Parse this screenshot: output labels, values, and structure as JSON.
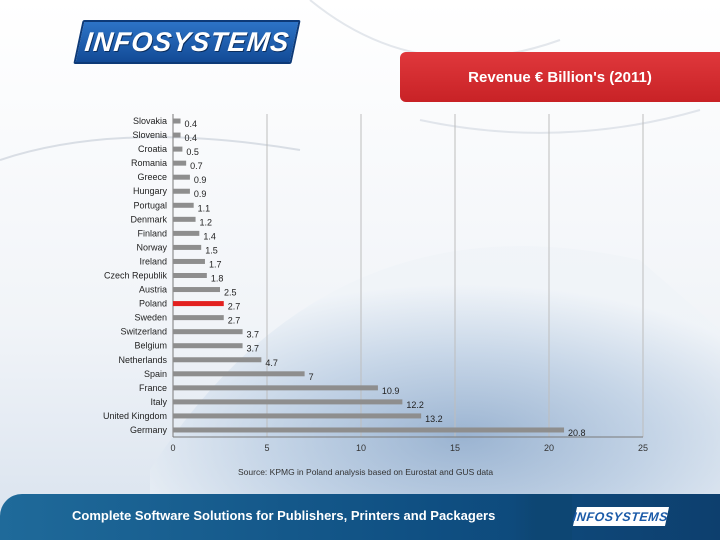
{
  "logo_text": "INFOSYSTEMS",
  "chart_data": {
    "type": "bar",
    "orientation": "horizontal",
    "title": "Revenue € Billion's (2011)",
    "categories": [
      "Slovakia",
      "Slovenia",
      "Croatia",
      "Romania",
      "Greece",
      "Hungary",
      "Portugal",
      "Denmark",
      "Finland",
      "Norway",
      "Ireland",
      "Czech Republik",
      "Austria",
      "Poland",
      "Sweden",
      "Switzerland",
      "Belgium",
      "Netherlands",
      "Spain",
      "France",
      "Italy",
      "United Kingdom",
      "Germany"
    ],
    "values": [
      0.4,
      0.4,
      0.5,
      0.7,
      0.9,
      0.9,
      1.1,
      1.2,
      1.4,
      1.5,
      1.7,
      1.8,
      2.5,
      2.7,
      2.7,
      3.7,
      3.7,
      4.7,
      7,
      10.9,
      12.2,
      13.2,
      20.8
    ],
    "value_labels": [
      "0.4",
      "0.4",
      "0.5",
      "0.7",
      "0.9",
      "0.9",
      "1.1",
      "1.2",
      "1.4",
      "1.5",
      "1.7",
      "1.8",
      "2.5",
      "2.7",
      "2.7",
      "3.7",
      "3.7",
      "4.7",
      "7",
      "10.9",
      "12.2",
      "13.2",
      "20.8"
    ],
    "xlim": [
      0,
      25
    ],
    "x_ticks": [
      0,
      5,
      10,
      15,
      20,
      25
    ],
    "grid": true,
    "highlight_category": "Poland",
    "colors": {
      "bar": "#8e8e8e",
      "highlight": "#e2201f",
      "grid": "#bdbdbd"
    }
  },
  "source_text": "Source: KPMG in Poland analysis based on Eurostat and GUS data",
  "footer": {
    "text": "Complete Software Solutions for Publishers, Printers and Packagers",
    "logo_text": "INFOSYSTEMS"
  }
}
